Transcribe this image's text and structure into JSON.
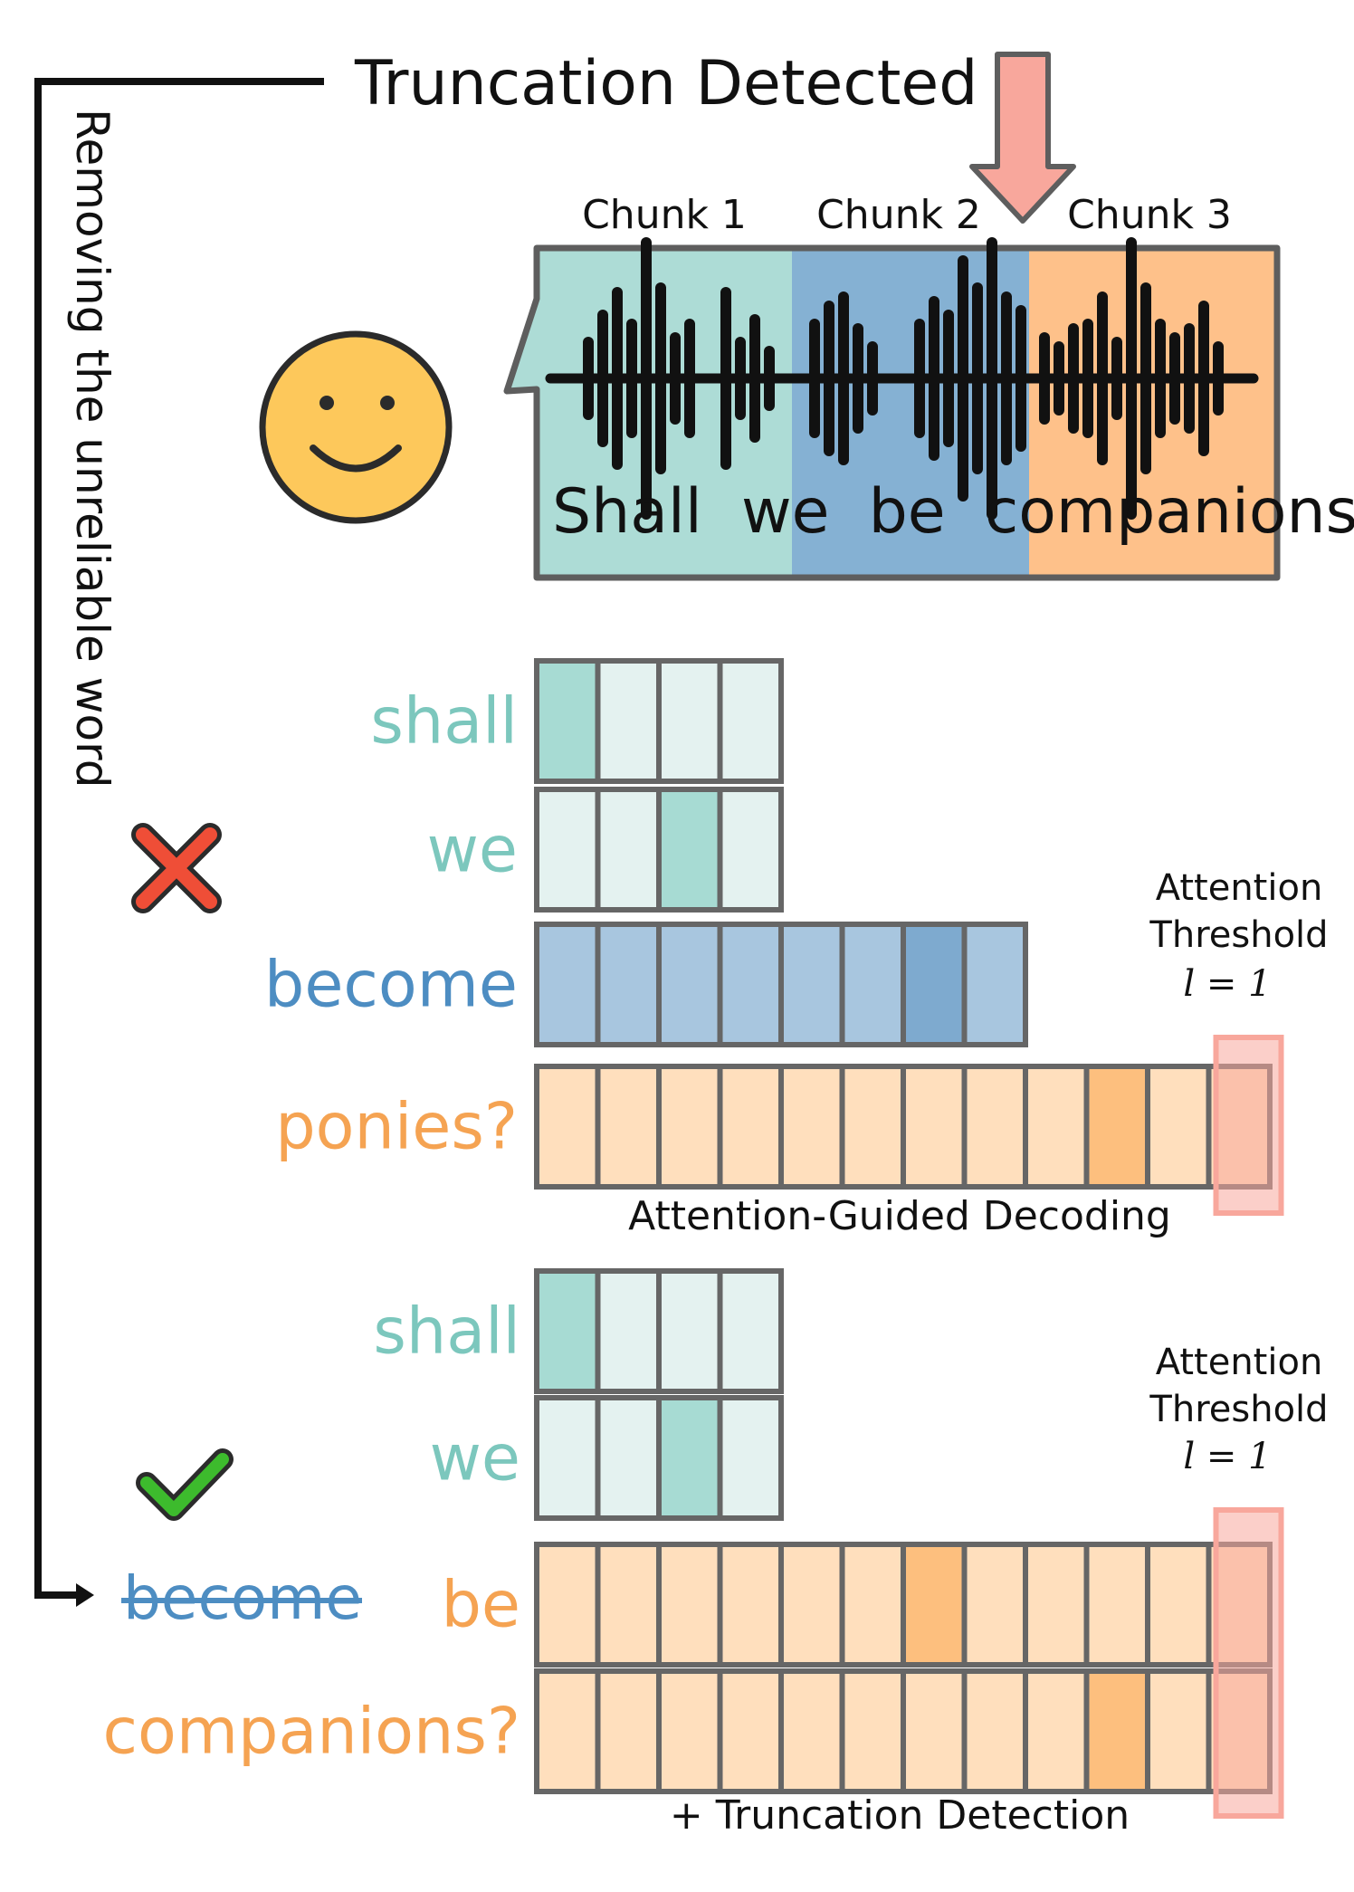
{
  "title": "Truncation Detected",
  "side_label": "Removing the unreliable word",
  "chunks": [
    {
      "label": "Chunk 1",
      "color": "#ADDCD6"
    },
    {
      "label": "Chunk 2",
      "color": "#85B1D3"
    },
    {
      "label": "Chunk 3",
      "color": "#FEC18A"
    }
  ],
  "speech_text": "Shall  we  be  companions?",
  "colors": {
    "teal": "#7CC7BD",
    "blue": "#4D8DC2",
    "orange": "#F5A352",
    "grid": "#666666",
    "arrow": "#F8A79C"
  },
  "panel_top": {
    "caption": "Attention-Guided Decoding",
    "status_icon": "cross-icon",
    "threshold_title_1": "Attention",
    "threshold_title_2": "Threshold",
    "threshold_formula": "l = 1",
    "rows": [
      {
        "word": "shall",
        "color": "teal",
        "cells": 4,
        "highlight": 0
      },
      {
        "word": "we",
        "color": "teal",
        "cells": 4,
        "highlight": 2
      },
      {
        "word": "become",
        "color": "blue",
        "cells": 8,
        "highlight": 6
      },
      {
        "word": "ponies?",
        "color": "orange",
        "cells": 12,
        "highlight": 9
      }
    ]
  },
  "panel_bottom": {
    "caption": "+ Truncation Detection",
    "status_icon": "check-icon",
    "threshold_title_1": "Attention",
    "threshold_title_2": "Threshold",
    "threshold_formula": "l = 1",
    "struck_word": "become",
    "rows": [
      {
        "word": "shall",
        "color": "teal",
        "cells": 4,
        "highlight": 0
      },
      {
        "word": "we",
        "color": "teal",
        "cells": 4,
        "highlight": 2
      },
      {
        "word": "be",
        "color": "orange",
        "cells": 12,
        "highlight": 6
      },
      {
        "word": "companions?",
        "color": "orange",
        "cells": 12,
        "highlight": 9
      }
    ]
  }
}
